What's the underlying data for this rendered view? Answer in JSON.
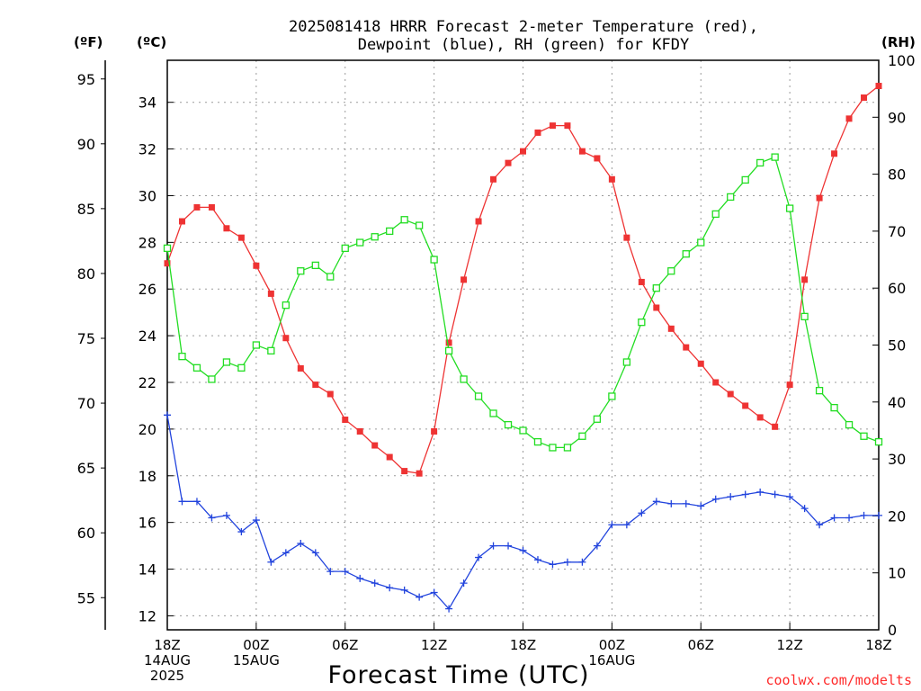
{
  "chart_data": {
    "type": "line",
    "title_line1": "2025081418 HRRR Forecast 2-meter Temperature (red),",
    "title_line2": "Dewpoint (blue), RH (green) for KFDY",
    "xlabel": "Forecast Time (UTC)",
    "credit": "coolwx.com/modelts",
    "units": {
      "fahrenheit": "(ºF)",
      "celsius": "(ºC)",
      "rh": "(RH)"
    },
    "x_ticks": [
      {
        "hour": 0,
        "lines": [
          "18Z",
          "14AUG",
          "2025"
        ]
      },
      {
        "hour": 6,
        "lines": [
          "00Z",
          "15AUG"
        ]
      },
      {
        "hour": 12,
        "lines": [
          "06Z"
        ]
      },
      {
        "hour": 18,
        "lines": [
          "12Z"
        ]
      },
      {
        "hour": 24,
        "lines": [
          "18Z"
        ]
      },
      {
        "hour": 30,
        "lines": [
          "00Z",
          "16AUG"
        ]
      },
      {
        "hour": 36,
        "lines": [
          "06Z"
        ]
      },
      {
        "hour": 42,
        "lines": [
          "12Z"
        ]
      },
      {
        "hour": 48,
        "lines": [
          "18Z"
        ]
      }
    ],
    "xlim": [
      0,
      48
    ],
    "celsius_axis": {
      "ylim": [
        11.4,
        35.8
      ],
      "ticks": [
        12,
        14,
        16,
        18,
        20,
        22,
        24,
        26,
        28,
        30,
        32,
        34
      ]
    },
    "fahrenheit_axis": {
      "ticks": [
        55,
        60,
        65,
        70,
        75,
        80,
        85,
        90,
        95
      ]
    },
    "rh_axis": {
      "ylim": [
        0,
        100
      ],
      "ticks": [
        0,
        10,
        20,
        30,
        40,
        50,
        60,
        70,
        80,
        90,
        100
      ]
    },
    "grid": true,
    "series": [
      {
        "name": "Temperature",
        "color": "#ee3333",
        "axis": "celsius",
        "marker": "filled-square",
        "values": [
          27.1,
          28.9,
          29.5,
          29.5,
          28.6,
          28.2,
          27.0,
          25.8,
          23.9,
          22.6,
          21.9,
          21.5,
          20.4,
          19.9,
          19.3,
          18.8,
          18.2,
          18.1,
          19.9,
          23.7,
          26.4,
          28.9,
          30.7,
          31.4,
          31.9,
          32.7,
          33.0,
          33.0,
          31.9,
          31.6,
          30.7,
          28.2,
          26.3,
          25.2,
          24.3,
          23.5,
          22.8,
          22.0,
          21.5,
          21.0,
          20.5,
          20.1,
          21.9,
          26.4,
          29.9,
          31.8,
          33.3,
          34.2,
          34.7
        ]
      },
      {
        "name": "Dewpoint",
        "color": "#2244dd",
        "axis": "celsius",
        "marker": "plus",
        "values": [
          20.6,
          16.9,
          16.9,
          16.2,
          16.3,
          15.6,
          16.1,
          14.3,
          14.7,
          15.1,
          14.7,
          13.9,
          13.9,
          13.6,
          13.4,
          13.2,
          13.1,
          12.8,
          13.0,
          12.3,
          13.4,
          14.5,
          15.0,
          15.0,
          14.8,
          14.4,
          14.2,
          14.3,
          14.3,
          15.0,
          15.9,
          15.9,
          16.4,
          16.9,
          16.8,
          16.8,
          16.7,
          17.0,
          17.1,
          17.2,
          17.3,
          17.2,
          17.1,
          16.6,
          15.9,
          16.2,
          16.2,
          16.3,
          16.3
        ]
      },
      {
        "name": "RH",
        "color": "#22dd22",
        "axis": "rh",
        "marker": "open-square",
        "values": [
          67,
          48,
          46,
          44,
          47,
          46,
          50,
          49,
          57,
          63,
          64,
          62,
          67,
          68,
          69,
          70,
          72,
          71,
          65,
          49,
          44,
          41,
          38,
          36,
          35,
          33,
          32,
          32,
          34,
          37,
          41,
          47,
          54,
          60,
          63,
          66,
          68,
          73,
          76,
          79,
          82,
          83,
          74,
          55,
          42,
          39,
          36,
          34,
          33
        ]
      }
    ]
  }
}
